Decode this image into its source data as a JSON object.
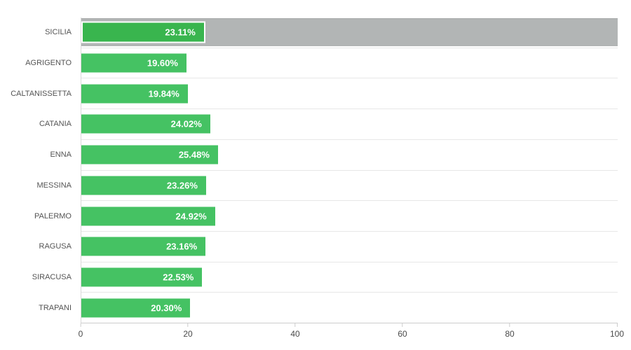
{
  "chart_data": {
    "type": "bar",
    "orientation": "horizontal",
    "title": "",
    "categories": [
      "SICILIA",
      "AGRIGENTO",
      "CALTANISSETTA",
      "CATANIA",
      "ENNA",
      "MESSINA",
      "PALERMO",
      "RAGUSA",
      "SIRACUSA",
      "TRAPANI"
    ],
    "values": [
      23.11,
      19.6,
      19.84,
      24.02,
      25.48,
      23.26,
      24.92,
      23.16,
      22.53,
      20.3
    ],
    "value_labels": [
      "23.11%",
      "19.60%",
      "19.84%",
      "24.02%",
      "25.48%",
      "23.26%",
      "24.92%",
      "23.16%",
      "22.53%",
      "20.30%"
    ],
    "x_ticks": [
      "0",
      "20",
      "40",
      "60",
      "80",
      "100"
    ],
    "xlim": [
      0,
      100
    ],
    "highlight_index": 0,
    "highlight_track_extent": 100,
    "grid": "row-separators-only",
    "legend": null,
    "colors": {
      "bar": "#45c263",
      "highlight_bar": "#39b54e",
      "highlight_track": "#b2b5b5",
      "value_text": "#ffffff",
      "category_text": "#545454",
      "tick_text": "#4a4a4a",
      "separator": "#e7e7e7",
      "axis_line": "#cccccc"
    }
  }
}
